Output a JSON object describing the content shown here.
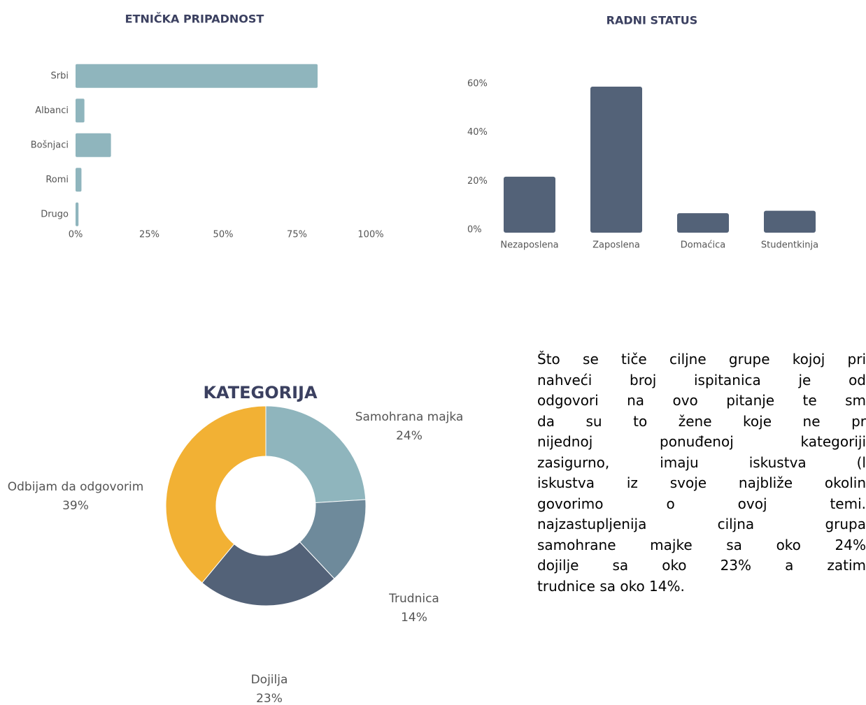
{
  "chart_data": [
    {
      "type": "hbar",
      "title": "ETNIČKA PRIPADNOST",
      "categories": [
        "Srbi",
        "Albanci",
        "Bošnjaci",
        "Romi",
        "Drugo"
      ],
      "values": [
        82,
        3,
        12,
        2,
        1
      ],
      "color": "#8fb5bd",
      "xlim": [
        0,
        100
      ],
      "xticks": [
        {
          "value": 0,
          "label": "0%"
        },
        {
          "value": 25,
          "label": "25%"
        },
        {
          "value": 50,
          "label": "50%"
        },
        {
          "value": 75,
          "label": "75%"
        },
        {
          "value": 100,
          "label": "100%"
        }
      ]
    },
    {
      "type": "bar",
      "title": "RADNI STATUS",
      "categories": [
        "Nezaposlena",
        "Zaposlena",
        "Domaćica",
        "Studentkinja"
      ],
      "values": [
        23,
        60,
        8,
        9
      ],
      "color": "#536278",
      "ylim": [
        0,
        60
      ],
      "yticks": [
        {
          "value": 0,
          "label": "0%"
        },
        {
          "value": 20,
          "label": "20%"
        },
        {
          "value": 40,
          "label": "40%"
        },
        {
          "value": 60,
          "label": "60%"
        }
      ]
    },
    {
      "type": "donut",
      "title": "KATEGORIJA",
      "categories": [
        "Samohrana majka",
        "Trudnica",
        "Dojilja",
        "Odbijam da odgovorim"
      ],
      "values": [
        24,
        14,
        23,
        39
      ],
      "value_labels": [
        "24%",
        "14%",
        "23%",
        "39%"
      ],
      "colors": [
        "#8fb5bd",
        "#6e8a9b",
        "#536278",
        "#f2b134"
      ]
    }
  ],
  "paragraph": [
    "Što se tiče ciljne grupe kojoj pri",
    "nahveći broj ispitanica je od",
    "odgovori na ovo pitanje te sm",
    "da su to žene koje ne pr",
    "nijednoj ponuđenoj kategoriji",
    "zasigurno, imaju iskustva (l",
    "iskustva iz svoje najbliže okolin",
    "govorimo o ovoj temi.",
    "najzastupljenija ciljna grupa",
    "samohrane majke sa oko 24%",
    "dojilje sa oko 23% a zatim",
    "trudnice sa oko 14%."
  ]
}
